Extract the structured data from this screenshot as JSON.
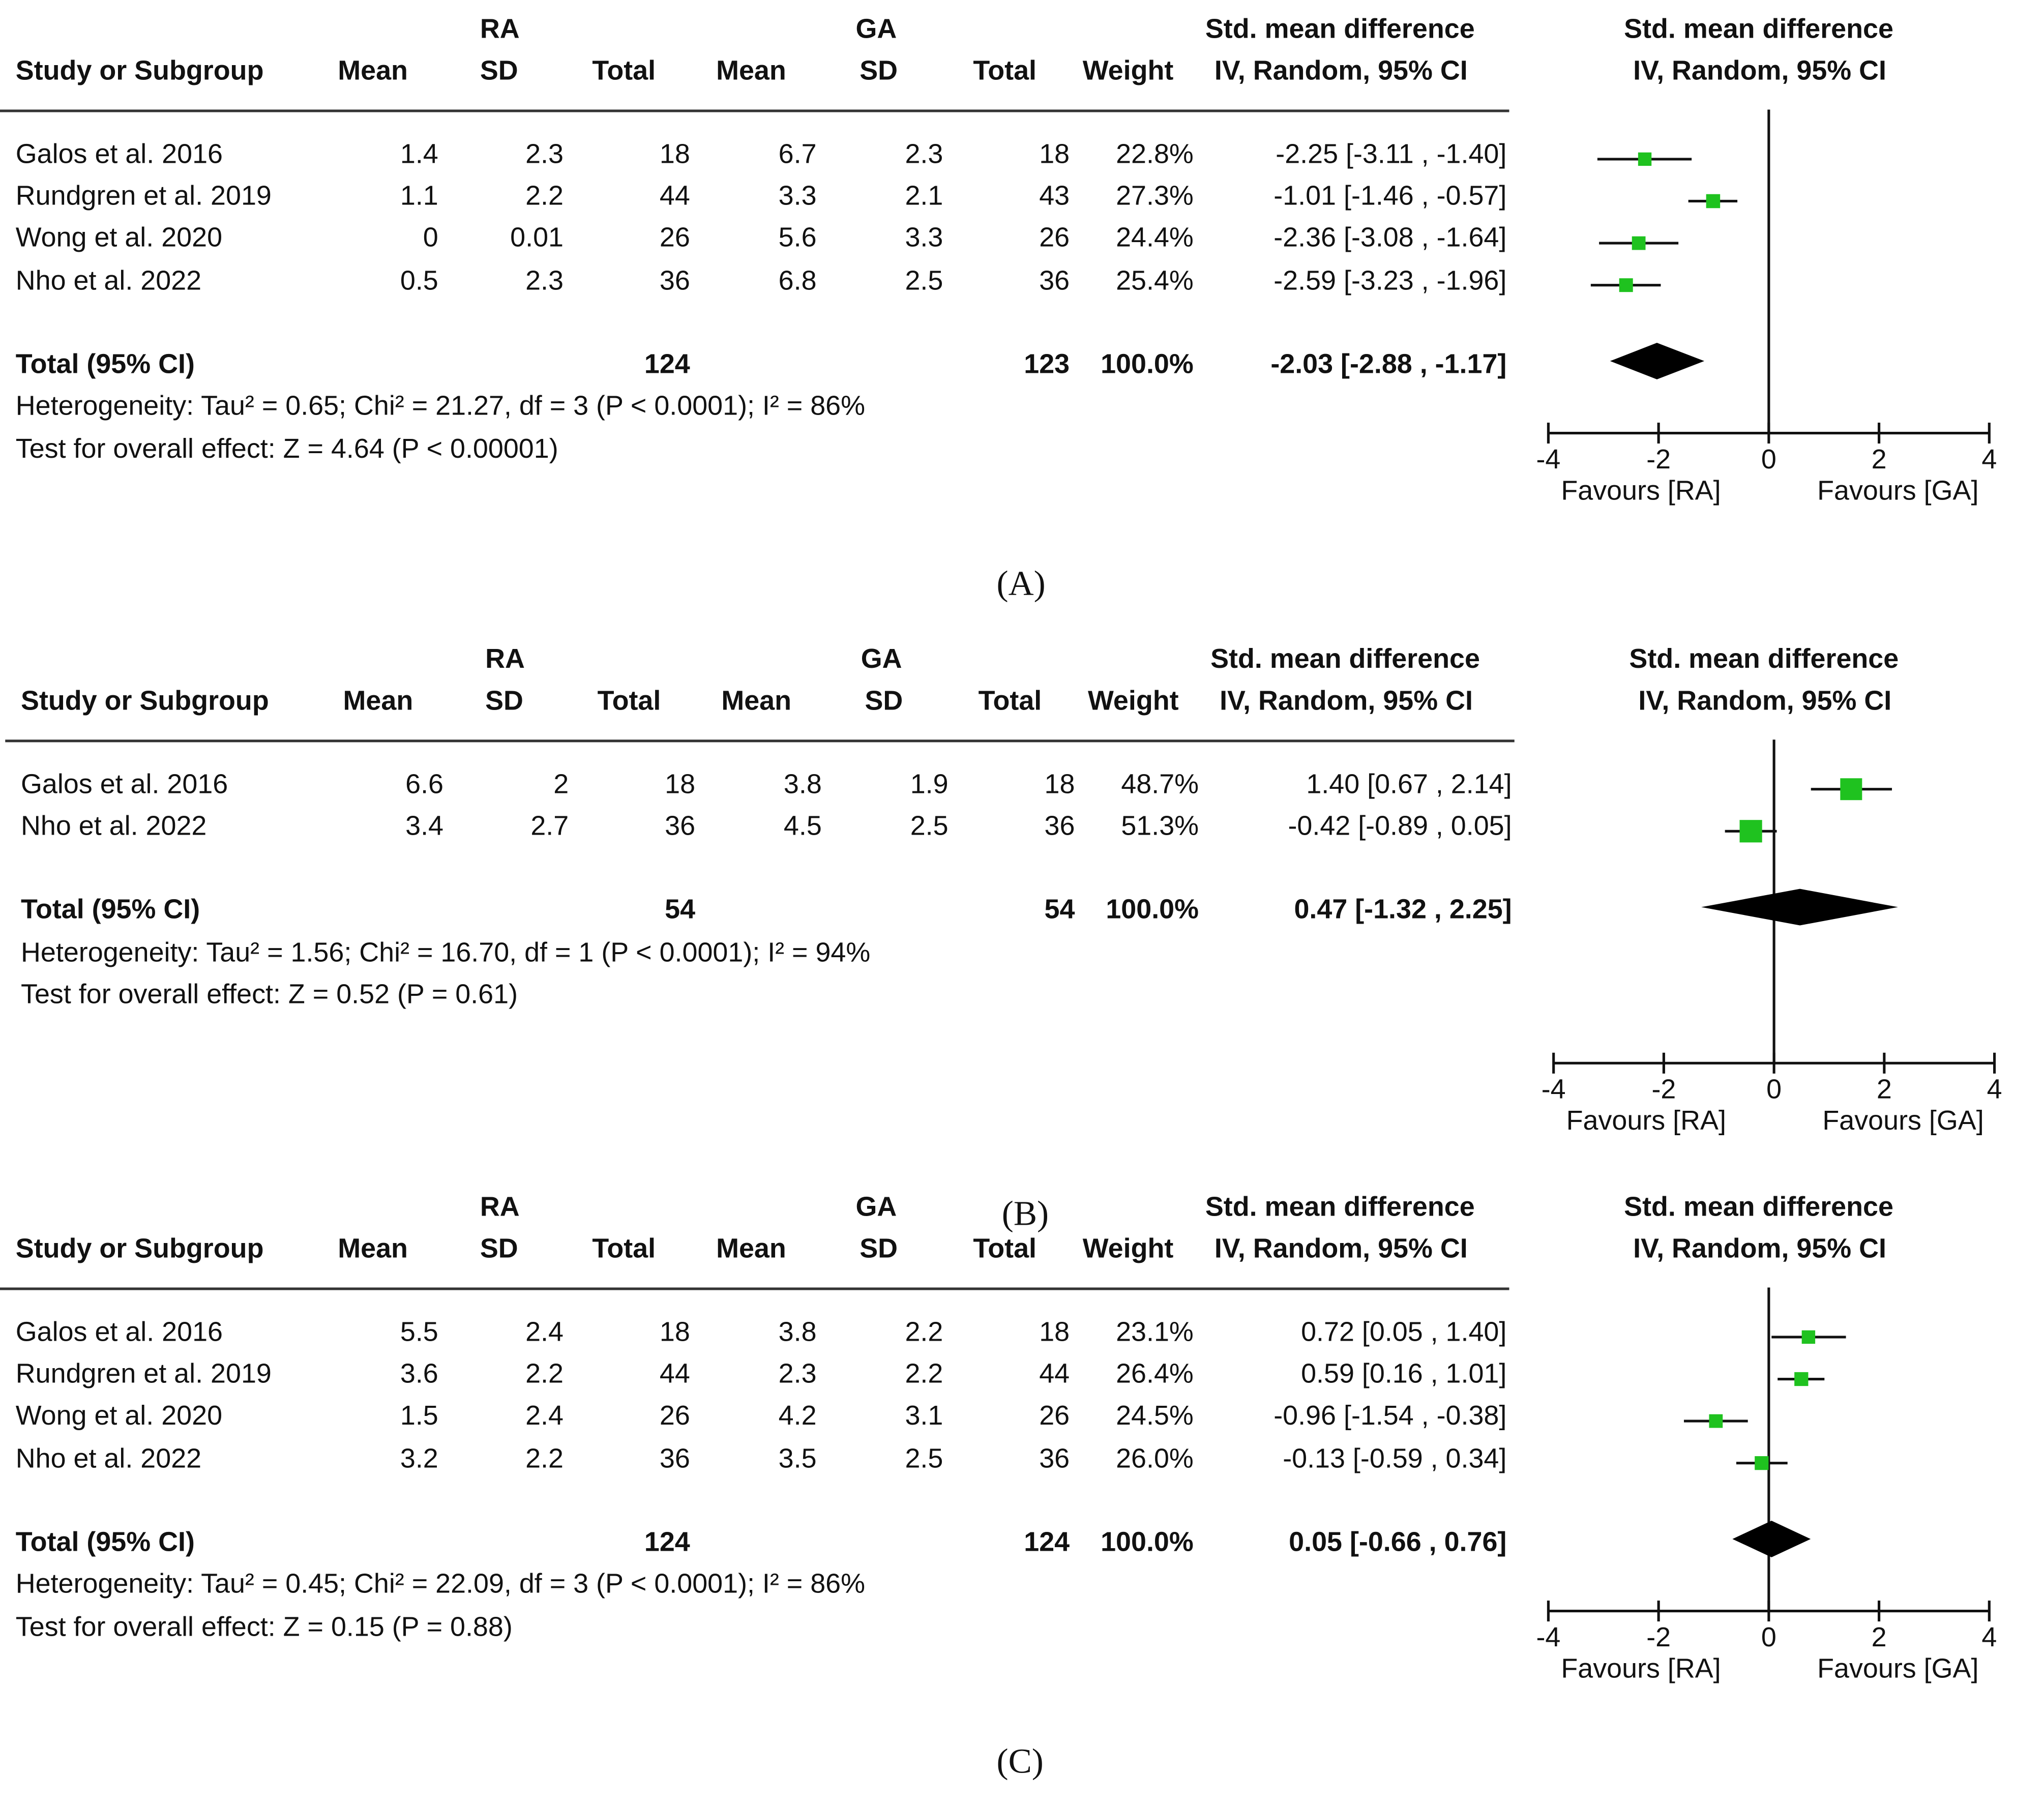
{
  "colors": {
    "marker": "#1fc21f",
    "diamond": "#000000",
    "text": "#111111"
  },
  "headers": {
    "study": "Study or Subgroup",
    "ra_group": "RA",
    "ga_group": "GA",
    "mean": "Mean",
    "sd": "SD",
    "total": "Total",
    "weight": "Weight",
    "smd_line1": "Std. mean difference",
    "smd_line2": "IV, Random, 95% CI"
  },
  "axis_labels": {
    "favours_left": "Favours [RA]",
    "favours_right": "Favours [GA]",
    "ticks": [
      "-4",
      "-2",
      "0",
      "2",
      "4"
    ]
  },
  "panels": [
    {
      "caption": "(A)",
      "studies": [
        {
          "name": "Galos et al. 2016",
          "ra_mean": "1.4",
          "ra_sd": "2.3",
          "ra_total": "18",
          "ga_mean": "6.7",
          "ga_sd": "2.3",
          "ga_total": "18",
          "weight": "22.8%",
          "ci_text": "-2.25 [-3.11 , -1.40]"
        },
        {
          "name": "Rundgren et al. 2019",
          "ra_mean": "1.1",
          "ra_sd": "2.2",
          "ra_total": "44",
          "ga_mean": "3.3",
          "ga_sd": "2.1",
          "ga_total": "43",
          "weight": "27.3%",
          "ci_text": "-1.01 [-1.46 , -0.57]"
        },
        {
          "name": "Wong et al. 2020",
          "ra_mean": "0",
          "ra_sd": "0.01",
          "ra_total": "26",
          "ga_mean": "5.6",
          "ga_sd": "3.3",
          "ga_total": "26",
          "weight": "24.4%",
          "ci_text": "-2.36 [-3.08 , -1.64]"
        },
        {
          "name": "Nho et al. 2022",
          "ra_mean": "0.5",
          "ra_sd": "2.3",
          "ra_total": "36",
          "ga_mean": "6.8",
          "ga_sd": "2.5",
          "ga_total": "36",
          "weight": "25.4%",
          "ci_text": "-2.59 [-3.23 , -1.96]"
        }
      ],
      "total": {
        "label": "Total (95% CI)",
        "ra_total": "124",
        "ga_total": "123",
        "weight": "100.0%",
        "ci_text": "-2.03 [-2.88 , -1.17]"
      },
      "heterogeneity": "Heterogeneity: Tau² = 0.65; Chi² = 21.27, df = 3 (P < 0.0001); I² = 86%",
      "overall": "Test for overall effect: Z = 4.64 (P < 0.00001)"
    },
    {
      "caption": "(B)",
      "studies": [
        {
          "name": "Galos et al. 2016",
          "ra_mean": "6.6",
          "ra_sd": "2",
          "ra_total": "18",
          "ga_mean": "3.8",
          "ga_sd": "1.9",
          "ga_total": "18",
          "weight": "48.7%",
          "ci_text": "1.40 [0.67 , 2.14]"
        },
        {
          "name": "Nho et al. 2022",
          "ra_mean": "3.4",
          "ra_sd": "2.7",
          "ra_total": "36",
          "ga_mean": "4.5",
          "ga_sd": "2.5",
          "ga_total": "36",
          "weight": "51.3%",
          "ci_text": "-0.42 [-0.89 , 0.05]"
        }
      ],
      "total": {
        "label": "Total (95% CI)",
        "ra_total": "54",
        "ga_total": "54",
        "weight": "100.0%",
        "ci_text": "0.47 [-1.32 , 2.25]"
      },
      "heterogeneity": "Heterogeneity: Tau² = 1.56; Chi² = 16.70, df = 1 (P < 0.0001); I² = 94%",
      "overall": "Test for overall effect: Z = 0.52 (P = 0.61)"
    },
    {
      "caption": "(C)",
      "studies": [
        {
          "name": "Galos et al. 2016",
          "ra_mean": "5.5",
          "ra_sd": "2.4",
          "ra_total": "18",
          "ga_mean": "3.8",
          "ga_sd": "2.2",
          "ga_total": "18",
          "weight": "23.1%",
          "ci_text": "0.72 [0.05 , 1.40]"
        },
        {
          "name": "Rundgren et al. 2019",
          "ra_mean": "3.6",
          "ra_sd": "2.2",
          "ra_total": "44",
          "ga_mean": "2.3",
          "ga_sd": "2.2",
          "ga_total": "44",
          "weight": "26.4%",
          "ci_text": "0.59 [0.16 , 1.01]"
        },
        {
          "name": "Wong et al. 2020",
          "ra_mean": "1.5",
          "ra_sd": "2.4",
          "ra_total": "26",
          "ga_mean": "4.2",
          "ga_sd": "3.1",
          "ga_total": "26",
          "weight": "24.5%",
          "ci_text": "-0.96 [-1.54 , -0.38]"
        },
        {
          "name": "Nho et al. 2022",
          "ra_mean": "3.2",
          "ra_sd": "2.2",
          "ra_total": "36",
          "ga_mean": "3.5",
          "ga_sd": "2.5",
          "ga_total": "36",
          "weight": "26.0%",
          "ci_text": "-0.13 [-0.59 , 0.34]"
        }
      ],
      "total": {
        "label": "Total (95% CI)",
        "ra_total": "124",
        "ga_total": "124",
        "weight": "100.0%",
        "ci_text": "0.05 [-0.66 , 0.76]"
      },
      "heterogeneity": "Heterogeneity: Tau² = 0.45; Chi² = 22.09, df = 3 (P < 0.0001); I² = 86%",
      "overall": "Test for overall effect: Z = 0.15 (P = 0.88)"
    }
  ],
  "chart_data": [
    {
      "type": "forest",
      "title": "(A)",
      "xlabel_left": "Favours [RA]",
      "xlabel_right": "Favours [GA]",
      "xlim": [
        -4,
        4
      ],
      "xticks": [
        -4,
        -2,
        0,
        2,
        4
      ],
      "studies": [
        {
          "name": "Galos et al. 2016",
          "smd": -2.25,
          "ci": [
            -3.11,
            -1.4
          ],
          "weight": 22.8
        },
        {
          "name": "Rundgren et al. 2019",
          "smd": -1.01,
          "ci": [
            -1.46,
            -0.57
          ],
          "weight": 27.3
        },
        {
          "name": "Wong et al. 2020",
          "smd": -2.36,
          "ci": [
            -3.08,
            -1.64
          ],
          "weight": 24.4
        },
        {
          "name": "Nho et al. 2022",
          "smd": -2.59,
          "ci": [
            -3.23,
            -1.96
          ],
          "weight": 25.4
        }
      ],
      "pooled": {
        "smd": -2.03,
        "ci": [
          -2.88,
          -1.17
        ]
      }
    },
    {
      "type": "forest",
      "title": "(B)",
      "xlabel_left": "Favours [RA]",
      "xlabel_right": "Favours [GA]",
      "xlim": [
        -4,
        4
      ],
      "xticks": [
        -4,
        -2,
        0,
        2,
        4
      ],
      "studies": [
        {
          "name": "Galos et al. 2016",
          "smd": 1.4,
          "ci": [
            0.67,
            2.14
          ],
          "weight": 48.7
        },
        {
          "name": "Nho et al. 2022",
          "smd": -0.42,
          "ci": [
            -0.89,
            0.05
          ],
          "weight": 51.3
        }
      ],
      "pooled": {
        "smd": 0.47,
        "ci": [
          -1.32,
          2.25
        ]
      }
    },
    {
      "type": "forest",
      "title": "(C)",
      "xlabel_left": "Favours [RA]",
      "xlabel_right": "Favours [GA]",
      "xlim": [
        -4,
        4
      ],
      "xticks": [
        -4,
        -2,
        0,
        2,
        4
      ],
      "studies": [
        {
          "name": "Galos et al. 2016",
          "smd": 0.72,
          "ci": [
            0.05,
            1.4
          ],
          "weight": 23.1
        },
        {
          "name": "Rundgren et al. 2019",
          "smd": 0.59,
          "ci": [
            0.16,
            1.01
          ],
          "weight": 26.4
        },
        {
          "name": "Wong et al. 2020",
          "smd": -0.96,
          "ci": [
            -1.54,
            -0.38
          ],
          "weight": 24.5
        },
        {
          "name": "Nho et al. 2022",
          "smd": -0.13,
          "ci": [
            -0.59,
            0.34
          ],
          "weight": 26.0
        }
      ],
      "pooled": {
        "smd": 0.05,
        "ci": [
          -0.66,
          0.76
        ]
      }
    }
  ]
}
